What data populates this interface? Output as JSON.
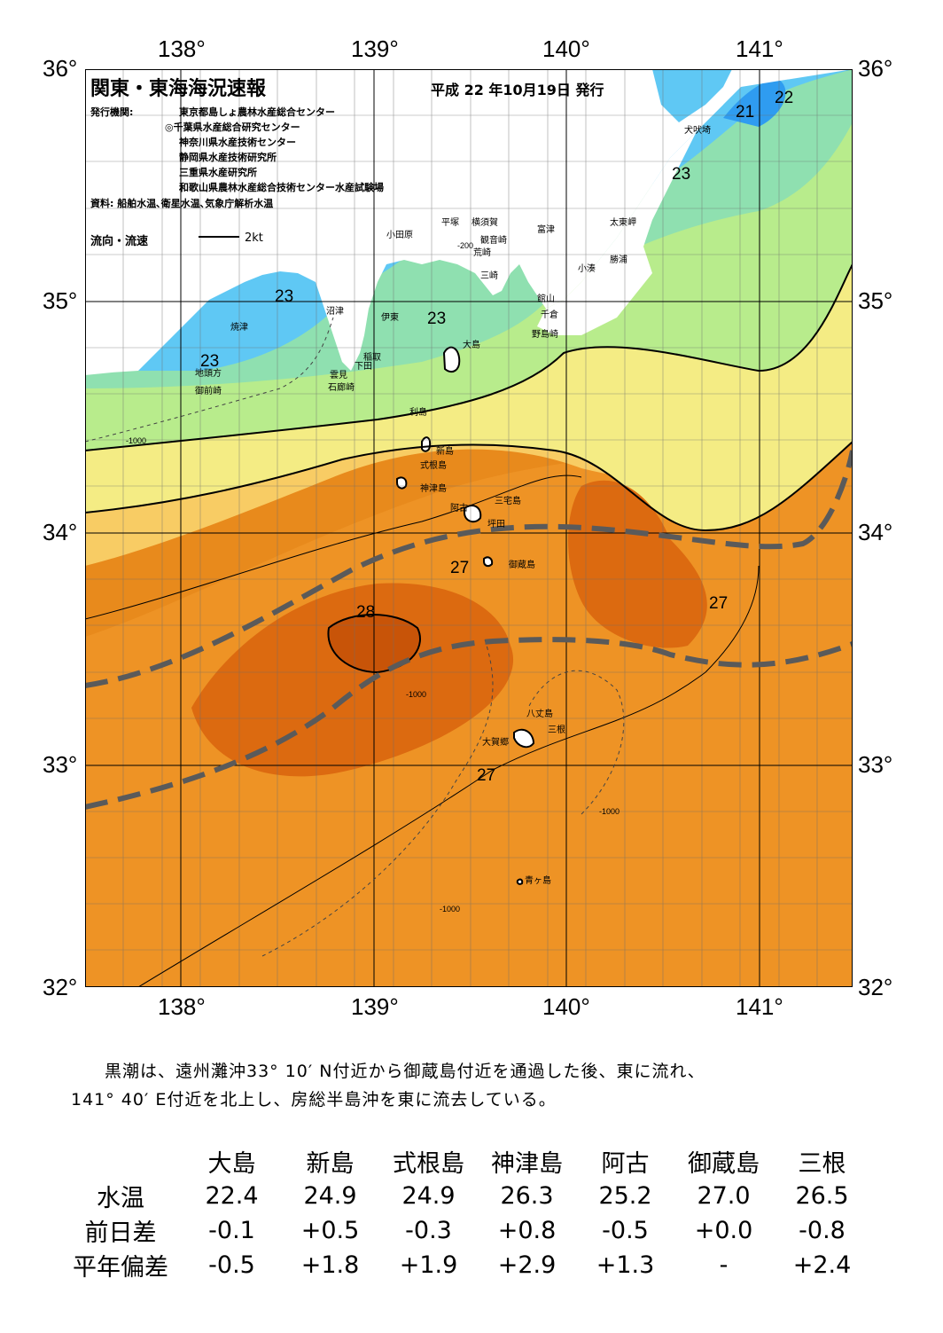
{
  "title": "関東・東海海況速報",
  "issue_date": "平成 22 年10月19日 発行",
  "publisher_label": "発行機関:",
  "publishers": [
    "東京都島しょ農林水産総合センター",
    "◎千葉県水産総合研究センター",
    "神奈川県水産技術センター",
    "静岡県水産技術研究所",
    "三重県水産研究所",
    "和歌山県農林水産総合技術センター水産試験場"
  ],
  "sources": "資料: 船舶水温､衛星水温､気象庁解析水温",
  "flow_legend": {
    "label": "流向・流速",
    "scale": "2kt"
  },
  "axes": {
    "lon": [
      "138°",
      "139°",
      "140°",
      "141°"
    ],
    "lat": [
      "36°",
      "35°",
      "34°",
      "33°",
      "32°"
    ]
  },
  "colors": {
    "t21": "#2f9cf0",
    "t22": "#5fc8f4",
    "t23": "#8fe0b0",
    "t24": "#b8ec8c",
    "t25": "#f4ec84",
    "t26": "#f8cc64",
    "t27": "#f2a036",
    "t27b": "#e88a1c",
    "t28": "#dc6a10",
    "t28b": "#c85408",
    "land": "#ffffff",
    "kuroshio": "#5a5a5a"
  },
  "temperature_labels": [
    "21",
    "22",
    "23",
    "23",
    "23",
    "23",
    "27",
    "27",
    "27",
    "28"
  ],
  "isobath_labels": [
    "-200",
    "-1000"
  ],
  "places": {
    "inubozaki": "犬吠埼",
    "taitomisaki": "太東岬",
    "katsuura": "勝浦",
    "kominato": "小湊",
    "futtsu": "富津",
    "tateyama": "館山",
    "chikura": "千倉",
    "nojimazaki": "野島崎",
    "odawara": "小田原",
    "hiratsuka": "平塚",
    "yokosuka": "横須賀",
    "kannonzaki": "観音崎",
    "arasaki": "荒崎",
    "misaki": "三崎",
    "numazu": "沼津",
    "ito": "伊東",
    "inatori": "稲取",
    "shimoda": "下田",
    "kumomi": "雲見",
    "irozaki": "石廊崎",
    "yaizu": "焼津",
    "jitogata": "地頭方",
    "omaezaki": "御前崎",
    "oshima": "大島",
    "toshima": "利島",
    "niijima": "新島",
    "shikinejima": "式根島",
    "kozushima": "神津島",
    "miyakejima": "三宅島",
    "ako": "阿古",
    "tsubota": "坪田",
    "mikurajima": "御蔵島",
    "hachijojima": "八丈島",
    "mitsune": "三根",
    "okago": "大賀郷",
    "aogashima": "青ヶ島"
  },
  "summary": [
    "黒潮は、遠州灘沖33° 10′ N付近から御蔵島付近を通過した後、東に流れ、",
    "141° 40′ E付近を北上し、房総半島沖を東に流去している。"
  ],
  "stats": {
    "columns": [
      "大島",
      "新島",
      "式根島",
      "神津島",
      "阿古",
      "御蔵島",
      "三根"
    ],
    "rows": [
      {
        "label": "水温",
        "values": [
          "22.4",
          "24.9",
          "24.9",
          "26.3",
          "25.2",
          "27.0",
          "26.5"
        ]
      },
      {
        "label": "前日差",
        "values": [
          "-0.1",
          "+0.5",
          "-0.3",
          "+0.8",
          "-0.5",
          "+0.0",
          "-0.8"
        ]
      },
      {
        "label": "平年偏差",
        "values": [
          "-0.5",
          "+1.8",
          "+1.9",
          "+2.9",
          "+1.3",
          "-",
          "+2.4"
        ]
      }
    ]
  }
}
